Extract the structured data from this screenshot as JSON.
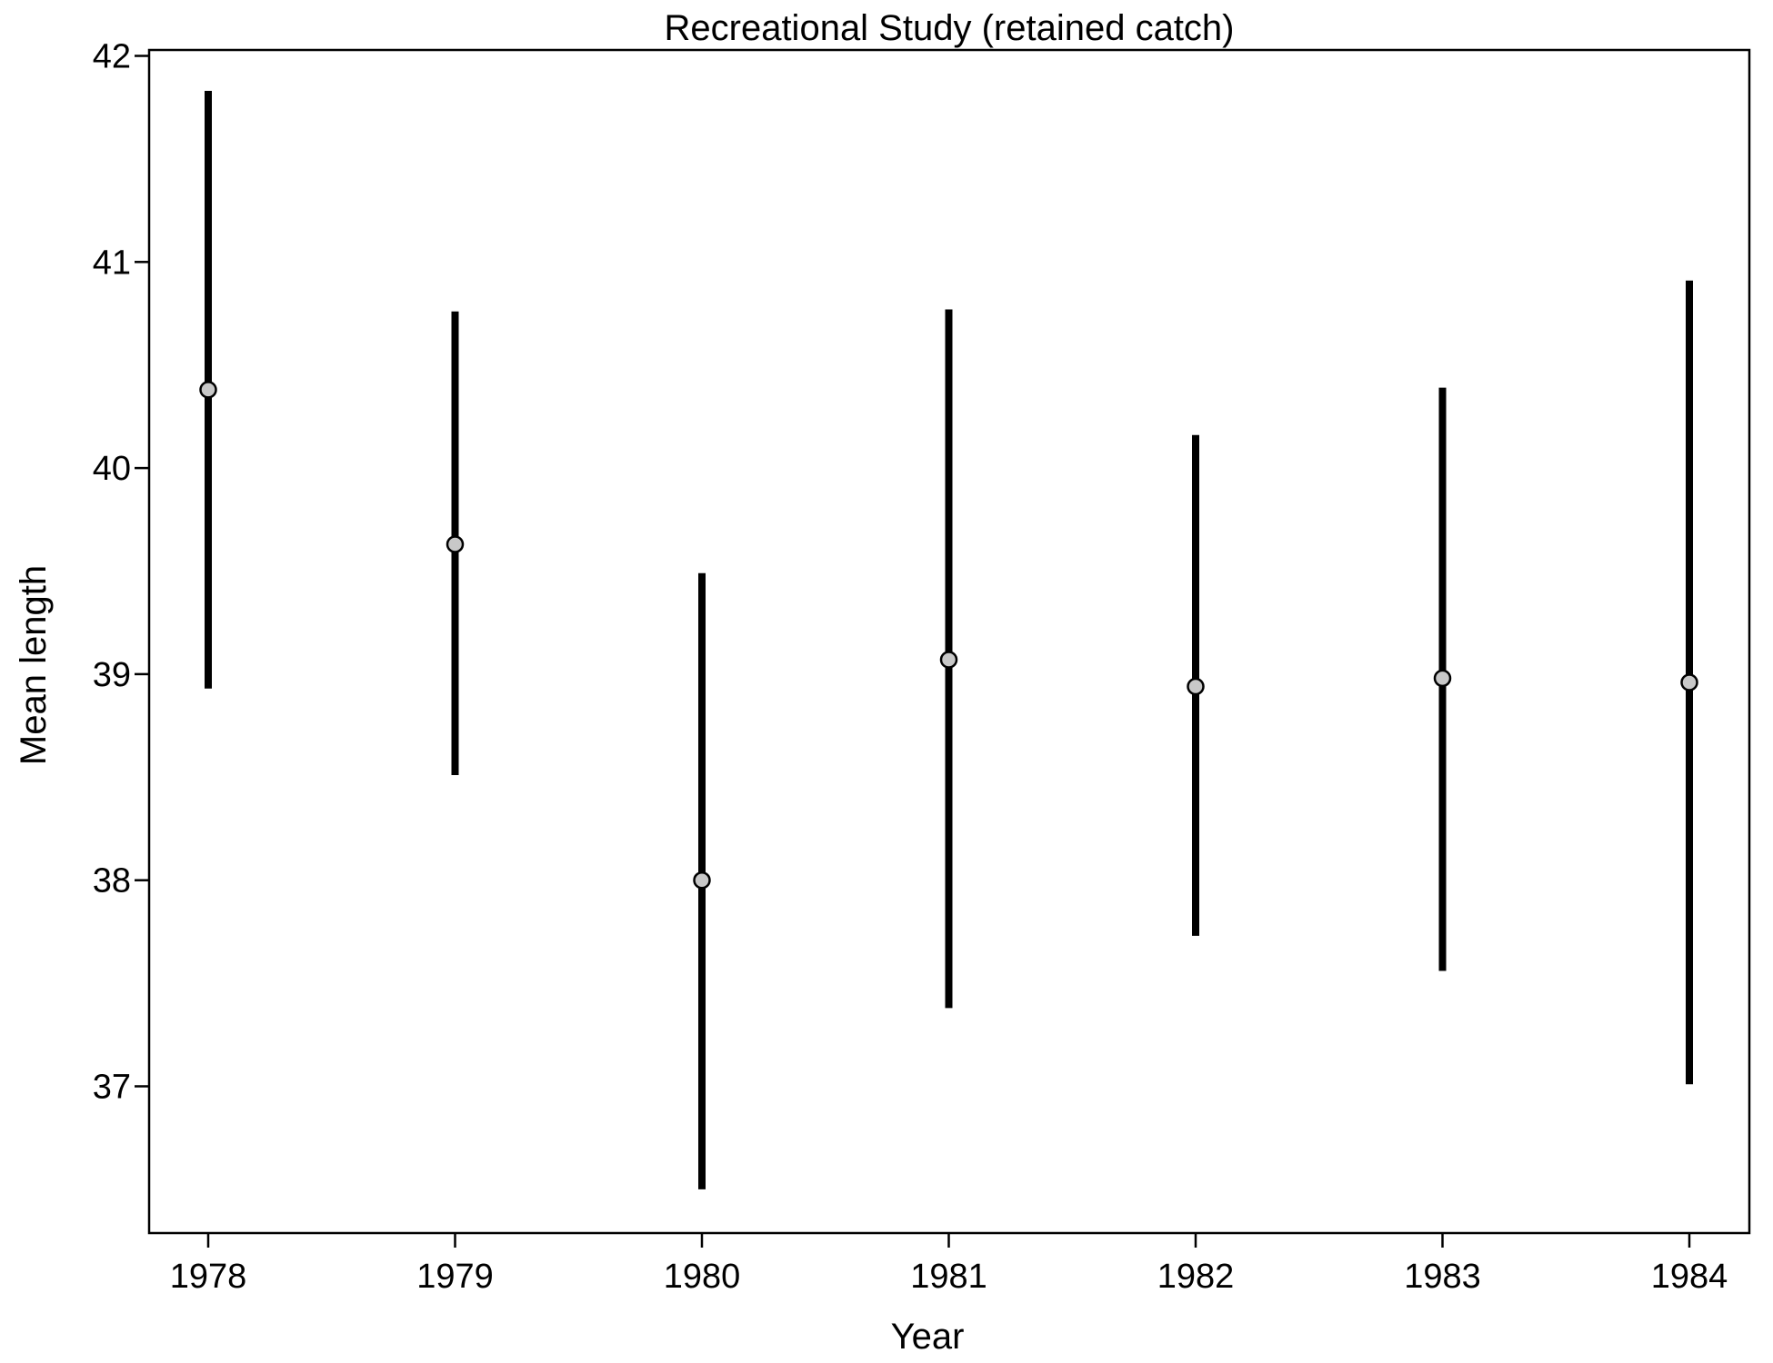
{
  "chart_data": {
    "type": "scatter",
    "title": "Recreational Study (retained catch)",
    "xlabel": "Year",
    "ylabel": "Mean length",
    "categories": [
      "1978",
      "1979",
      "1980",
      "1981",
      "1982",
      "1983",
      "1984"
    ],
    "series": [
      {
        "points": [
          {
            "x": "1978",
            "mean": 40.38,
            "low": 38.93,
            "high": 41.83
          },
          {
            "x": "1979",
            "mean": 39.63,
            "low": 38.51,
            "high": 40.76
          },
          {
            "x": "1980",
            "mean": 38.0,
            "low": 36.5,
            "high": 39.49
          },
          {
            "x": "1981",
            "mean": 39.07,
            "low": 37.38,
            "high": 40.77
          },
          {
            "x": "1982",
            "mean": 38.94,
            "low": 37.73,
            "high": 40.16
          },
          {
            "x": "1983",
            "mean": 38.98,
            "low": 37.56,
            "high": 40.39
          },
          {
            "x": "1984",
            "mean": 38.96,
            "low": 37.01,
            "high": 40.91
          }
        ]
      }
    ],
    "yticks": [
      37,
      38,
      39,
      40,
      41,
      42
    ],
    "ylim": [
      36.3,
      42.05
    ],
    "grid": false,
    "colors": {
      "marker_fill": "#c8c8c8",
      "bar": "#000000",
      "axis": "#000000"
    }
  }
}
